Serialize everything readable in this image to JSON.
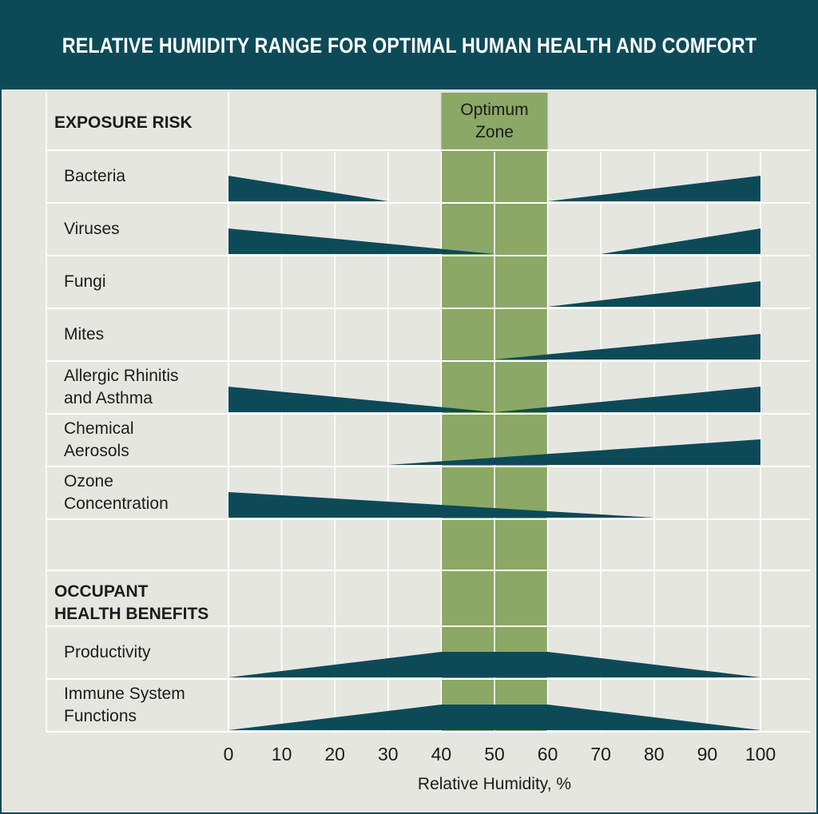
{
  "title": "RELATIVE HUMIDITY RANGE FOR OPTIMAL HUMAN HEALTH AND COMFORT",
  "colors": {
    "header": "#0d4a57",
    "risk_fill": "#0d4a57",
    "optimum_zone": "#8ba866",
    "background": "#e6e6e1",
    "grid": "#ffffff"
  },
  "chart_data": {
    "type": "area",
    "title": "RELATIVE HUMIDITY RANGE FOR OPTIMAL HUMAN HEALTH AND COMFORT",
    "xlabel": "Relative Humidity, %",
    "xlim": [
      0,
      100
    ],
    "x_ticks": [
      "0",
      "10",
      "20",
      "30",
      "40",
      "50",
      "60",
      "70",
      "80",
      "90",
      "100"
    ],
    "optimum_zone": {
      "label_line1": "Optimum",
      "label_line2": "Zone",
      "x_range": [
        40,
        60
      ]
    },
    "sections": [
      {
        "heading_lines": [
          "EXPOSURE RISK"
        ],
        "rows": [
          {
            "label_lines": [
              "Bacteria"
            ],
            "segments": [
              {
                "points": [
                  [
                    0,
                    1
                  ],
                  [
                    30,
                    0
                  ]
                ]
              },
              {
                "points": [
                  [
                    60,
                    0
                  ],
                  [
                    100,
                    1
                  ]
                ]
              }
            ]
          },
          {
            "label_lines": [
              "Viruses"
            ],
            "segments": [
              {
                "points": [
                  [
                    0,
                    1
                  ],
                  [
                    50,
                    0
                  ]
                ]
              },
              {
                "points": [
                  [
                    70,
                    0
                  ],
                  [
                    100,
                    1
                  ]
                ]
              }
            ]
          },
          {
            "label_lines": [
              "Fungi"
            ],
            "segments": [
              {
                "points": [
                  [
                    60,
                    0
                  ],
                  [
                    100,
                    1
                  ]
                ]
              }
            ]
          },
          {
            "label_lines": [
              "Mites"
            ],
            "segments": [
              {
                "points": [
                  [
                    50,
                    0
                  ],
                  [
                    100,
                    1
                  ]
                ]
              }
            ]
          },
          {
            "label_lines": [
              "Allergic Rhinitis",
              "and Asthma"
            ],
            "segments": [
              {
                "points": [
                  [
                    0,
                    1
                  ],
                  [
                    50,
                    0
                  ]
                ]
              },
              {
                "points": [
                  [
                    50,
                    0
                  ],
                  [
                    100,
                    1
                  ]
                ]
              }
            ]
          },
          {
            "label_lines": [
              "Chemical",
              "Aerosols"
            ],
            "segments": [
              {
                "points": [
                  [
                    30,
                    0
                  ],
                  [
                    100,
                    1
                  ]
                ]
              }
            ]
          },
          {
            "label_lines": [
              "Ozone",
              "Concentration"
            ],
            "segments": [
              {
                "points": [
                  [
                    0,
                    1
                  ],
                  [
                    80,
                    0
                  ]
                ]
              }
            ]
          }
        ]
      },
      {
        "heading_lines": [
          "OCCUPANT",
          "HEALTH BENEFITS"
        ],
        "rows": [
          {
            "label_lines": [
              "Productivity"
            ],
            "segments": [
              {
                "points": [
                  [
                    0,
                    0
                  ],
                  [
                    40,
                    1
                  ],
                  [
                    60,
                    1
                  ],
                  [
                    100,
                    0
                  ]
                ]
              }
            ]
          },
          {
            "label_lines": [
              "Immune System",
              "Functions"
            ],
            "segments": [
              {
                "points": [
                  [
                    0,
                    0
                  ],
                  [
                    40,
                    1
                  ],
                  [
                    60,
                    1
                  ],
                  [
                    100,
                    0
                  ]
                ]
              }
            ]
          }
        ]
      }
    ]
  }
}
